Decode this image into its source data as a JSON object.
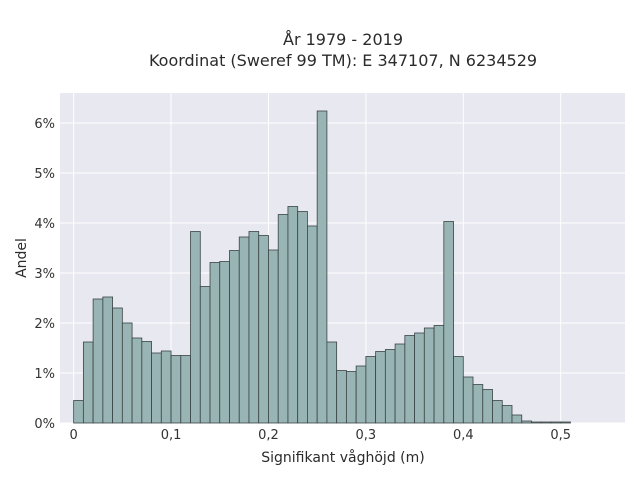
{
  "chart_data": {
    "type": "bar",
    "title_line1": "År 1979 - 2019",
    "title_line2": "Koordinat (Sweref 99 TM): E 347107, N 6234529",
    "xlabel": "Signifikant våghöjd (m)",
    "ylabel": "Andel",
    "xlim": [
      -0.014,
      0.566
    ],
    "ylim": [
      0,
      6.6
    ],
    "bin_start": 0.0,
    "bin_width": 0.01,
    "x_ticks": [
      0,
      0.1,
      0.2,
      0.3,
      0.4,
      0.5
    ],
    "x_tick_labels": [
      "0",
      "0,1",
      "0,2",
      "0,3",
      "0,4",
      "0,5"
    ],
    "y_ticks": [
      0,
      1,
      2,
      3,
      4,
      5,
      6
    ],
    "y_tick_labels": [
      "0%",
      "1%",
      "2%",
      "3%",
      "4%",
      "5%",
      "6%"
    ],
    "grid": true,
    "values": [
      0.45,
      1.62,
      2.48,
      2.52,
      2.3,
      2.0,
      1.7,
      1.63,
      1.4,
      1.44,
      1.35,
      1.35,
      3.83,
      2.73,
      3.21,
      3.23,
      3.45,
      3.72,
      3.83,
      3.75,
      3.46,
      4.17,
      4.33,
      4.23,
      3.94,
      6.24,
      1.62,
      1.05,
      1.03,
      1.14,
      1.33,
      1.43,
      1.47,
      1.58,
      1.75,
      1.8,
      1.9,
      1.95,
      4.03,
      1.33,
      0.92,
      0.77,
      0.67,
      0.45,
      0.35,
      0.16,
      0.04,
      0.02,
      0.02,
      0.02,
      0.02
    ],
    "colors": {
      "bar_fill": "#98b4b4",
      "bar_edge": "#3a4444",
      "plot_bg": "#e8e8f0",
      "grid": "#ffffff"
    }
  }
}
